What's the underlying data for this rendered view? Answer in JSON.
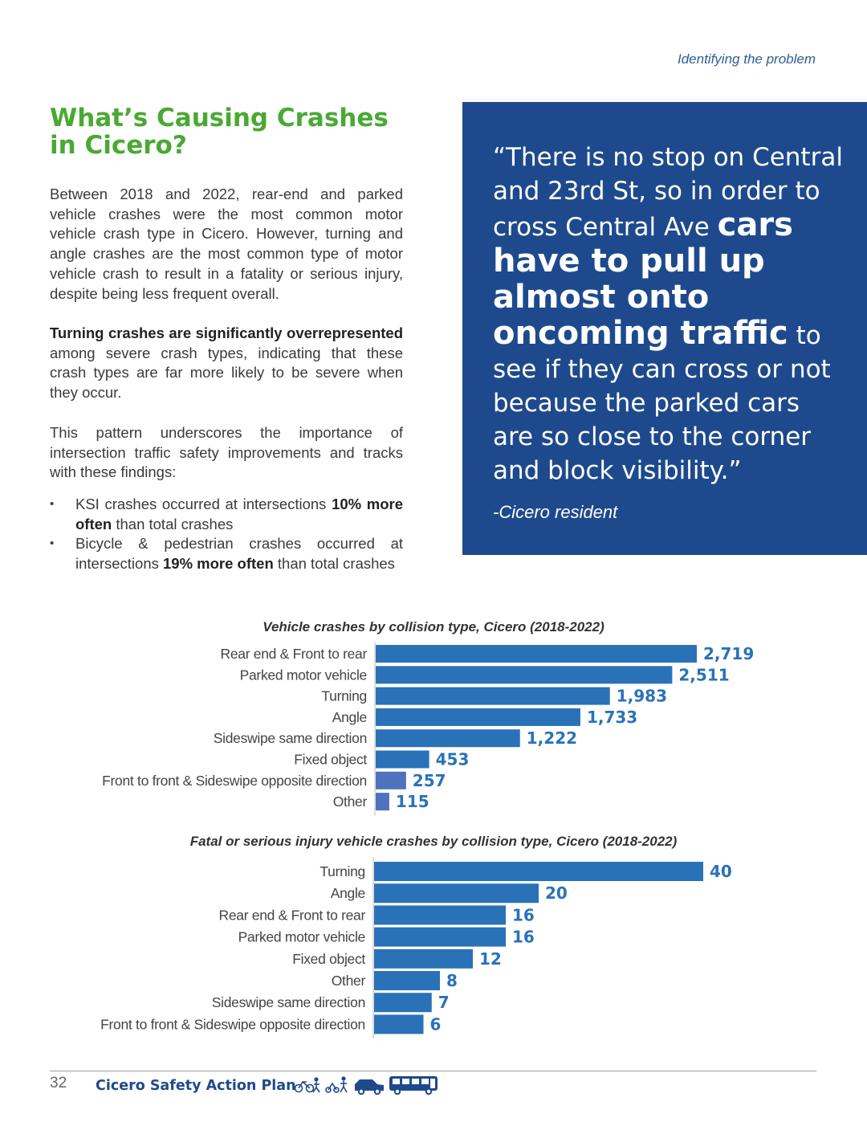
{
  "header": {
    "section": "Identifying the problem"
  },
  "title": "What’s Causing Crashes in Cicero?",
  "paragraphs": {
    "p1": "Between 2018 and 2022, rear-end and parked vehicle crashes were the most common motor vehicle crash type in Cicero. However, turning and angle crashes are the most common type of motor vehicle crash to result in a fatality or serious injury, despite being less frequent overall.",
    "p2_bold": "Turning crashes are significantly overrepresented",
    "p2_rest": " among severe crash types, indicating that these crash types are far more likely to be severe when they occur.",
    "p3": "This pattern underscores the importance of intersection traffic safety improvements and tracks with these findings:"
  },
  "bullets": [
    {
      "pre": "KSI crashes occurred at intersections ",
      "bold": "10% more often",
      "post": " than total crashes"
    },
    {
      "pre": "Bicycle & pedestrian crashes occurred at intersections ",
      "bold": "19% more often",
      "post": " than total crashes"
    }
  ],
  "quote": {
    "part1": "“There is no stop on Central and 23rd St, so in order to cross Central Ave",
    "bold": "cars have to pull up almost onto oncoming traffic",
    "part2": "to see if they can cross or not because the parked cars are so close to the corner and block visibility.”",
    "attribution": "-Cicero resident"
  },
  "chart_data": [
    {
      "type": "bar",
      "orientation": "horizontal",
      "title": "Vehicle crashes by collision type, Cicero (2018-2022)",
      "categories": [
        "Rear end & Front to rear",
        "Parked motor vehicle",
        "Turning",
        "Angle",
        "Sideswipe same direction",
        "Fixed object",
        "Front to front & Sideswipe opposite direction",
        "Other"
      ],
      "values": [
        2719,
        2511,
        1983,
        1733,
        1222,
        453,
        257,
        115
      ],
      "value_labels": [
        "2,719",
        "2,511",
        "1,983",
        "1,733",
        "1,222",
        "453",
        "257",
        "115"
      ],
      "colors": [
        "#2a72b8",
        "#2a72b8",
        "#2a72b8",
        "#2a72b8",
        "#2a72b8",
        "#2a72b8",
        "#4f72bf",
        "#4f72bf"
      ],
      "xmax": 2719
    },
    {
      "type": "bar",
      "orientation": "horizontal",
      "title": "Fatal or serious injury vehicle crashes by collision type, Cicero (2018-2022)",
      "categories": [
        "Turning",
        "Angle",
        "Rear end & Front to rear",
        "Parked motor vehicle",
        "Fixed object",
        "Other",
        "Sideswipe same direction",
        "Front to front & Sideswipe opposite direction"
      ],
      "values": [
        40,
        20,
        16,
        16,
        12,
        8,
        7,
        6
      ],
      "value_labels": [
        "40",
        "20",
        "16",
        "16",
        "12",
        "8",
        "7",
        "6"
      ],
      "colors": [
        "#2a72b8",
        "#2a72b8",
        "#2a72b8",
        "#2a72b8",
        "#2a72b8",
        "#2a72b8",
        "#2a72b8",
        "#2a72b8"
      ],
      "xmax": 40
    }
  ],
  "footer": {
    "page_number": "32",
    "plan_title": "Cicero Safety Action Plan"
  },
  "colors": {
    "green": "#4aa933",
    "navy": "#1e4a8d",
    "bar": "#2a72b8"
  }
}
